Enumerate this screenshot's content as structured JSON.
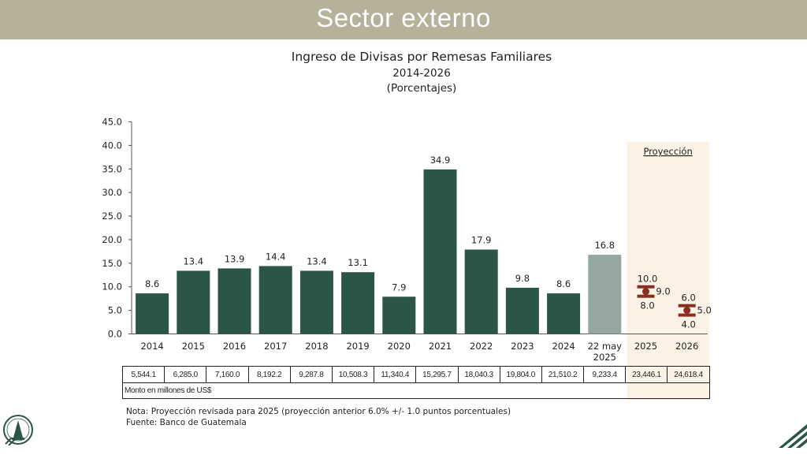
{
  "header": {
    "title": "Sector externo"
  },
  "chart_data": {
    "type": "bar",
    "title": "Ingreso de Divisas por Remesas Familiares",
    "subtitle": "2014-2026",
    "unit_label": "(Porcentajes)",
    "categories": [
      "2014",
      "2015",
      "2016",
      "2017",
      "2018",
      "2019",
      "2020",
      "2021",
      "2022",
      "2023",
      "2024",
      "22 may 2025"
    ],
    "values": [
      8.6,
      13.4,
      13.9,
      14.4,
      13.4,
      13.1,
      7.9,
      34.9,
      17.9,
      9.8,
      8.6,
      16.8
    ],
    "value_labels": [
      "8.6",
      "13.4",
      "13.9",
      "14.4",
      "13.4",
      "13.1",
      "7.9",
      "34.9",
      "17.9",
      "9.8",
      "8.6",
      "16.8"
    ],
    "highlight_category": "22 may 2025",
    "ylim": [
      0,
      45
    ],
    "yticks": [
      "0.0",
      "5.0",
      "10.0",
      "15.0",
      "20.0",
      "25.0",
      "30.0",
      "35.0",
      "40.0",
      "45.0"
    ],
    "projection": {
      "label": "Proyección",
      "points": [
        {
          "category": "2025",
          "center": 9.0,
          "low": 8.0,
          "high": 10.0,
          "center_label": "9.0",
          "low_label": "8.0",
          "high_label": "10.0"
        },
        {
          "category": "2026",
          "center": 5.0,
          "low": 4.0,
          "high": 6.0,
          "center_label": "5.0",
          "low_label": "4.0",
          "high_label": "6.0"
        }
      ]
    },
    "amounts": [
      "5,544.1",
      "6,285.0",
      "7,160.0",
      "8,192.2",
      "9,287.8",
      "10,508.3",
      "11,340.4",
      "15,295.7",
      "18,040.3",
      "19,804.0",
      "21,510.2",
      "9,233.4",
      "23,446.1",
      "24,618.4"
    ],
    "amounts_label": "Monto en millones de US$",
    "colors": {
      "bar": "#2b5547",
      "highlight_bar": "#94a89f",
      "projection_marker": "#8b2e1f",
      "projection_band": "#fbf1e5",
      "banner": "#b5b19b"
    }
  },
  "notes": {
    "nota": "Nota: Proyección revisada para 2025 (proyección anterior 6.0% +/- 1.0 puntos porcentuales)",
    "fuente": "Fuente: Banco de Guatemala"
  }
}
